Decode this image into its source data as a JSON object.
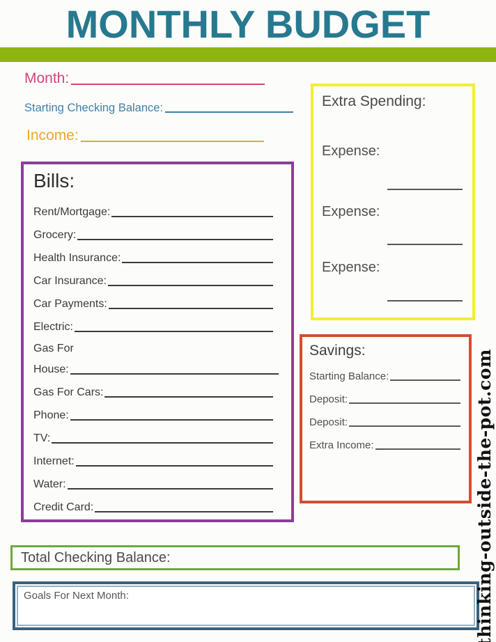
{
  "header": {
    "title": "MONTHLY BUDGET"
  },
  "fields": {
    "month": "Month:",
    "starting_checking_balance": "Starting Checking Balance:",
    "income": "Income:"
  },
  "bills": {
    "title": "Bills:",
    "items": [
      "Rent/Mortgage:",
      "Grocery:",
      "Health Insurance:",
      "Car Insurance:",
      "Car Payments:",
      "Electric:",
      "Gas For",
      "House:",
      "Gas For Cars:",
      "Phone:",
      "TV:",
      "Internet:",
      "Water:",
      "Credit Card:"
    ]
  },
  "extra_spending": {
    "title": "Extra Spending:",
    "items": [
      "Expense:",
      "Expense:",
      "Expense:"
    ]
  },
  "savings": {
    "title": "Savings:",
    "items": [
      "Starting Balance:",
      "Deposit:",
      "Deposit:",
      "Extra Income:"
    ]
  },
  "totals": {
    "checking_label": "Total Checking Balance:"
  },
  "goals": {
    "label": "Goals For Next Month:"
  },
  "watermark": {
    "text": "thinking-outside-the-pot.com"
  },
  "colors": {
    "title_teal": "#26798f",
    "bar_green": "#8db50e",
    "month_pink": "#d2447e",
    "balance_blue": "#4180ab",
    "income_orange": "#eda821",
    "bills_purple": "#8a3d9c",
    "extra_yellow": "#f2ee35",
    "savings_red_orange": "#d04f30",
    "total_green": "#70a83d",
    "goals_navy": "#3b617c",
    "goals_light_blue": "#92b3c7"
  }
}
